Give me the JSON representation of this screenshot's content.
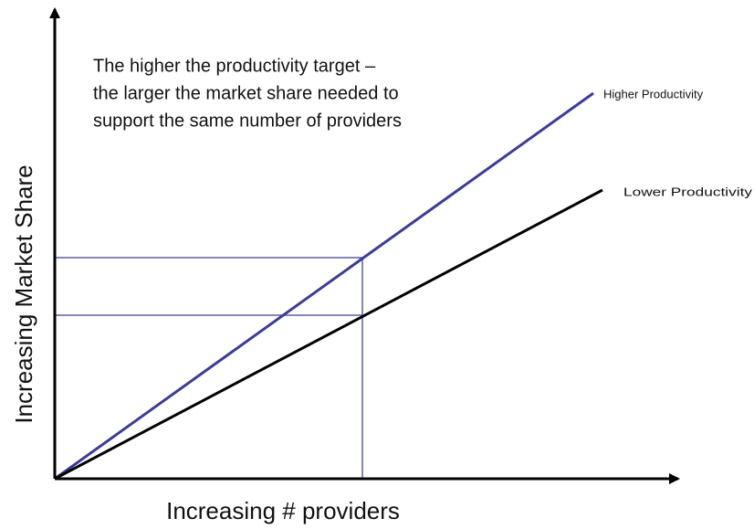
{
  "annotation": {
    "lines": [
      "The higher the productivity target –",
      "the larger the market share needed to",
      "support the same number of providers"
    ]
  },
  "lines": [
    {
      "label": "Higher Productivity"
    },
    {
      "label": "Lower Productivity"
    }
  ],
  "x_axis": {
    "label": "Increasing # providers"
  },
  "y_axis": {
    "label": "Increasing Market Share"
  }
}
